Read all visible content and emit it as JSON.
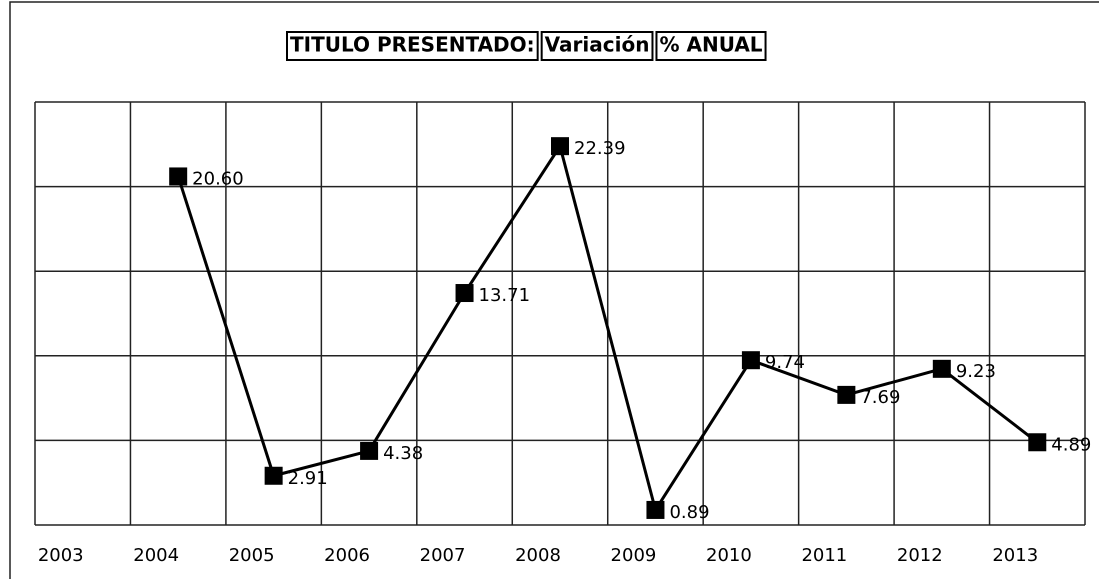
{
  "chart_data": {
    "type": "line",
    "title": [
      "TITULO PRESENTADO:",
      "Variación",
      "% ANUAL"
    ],
    "categories": [
      "2003",
      "2004",
      "2005",
      "2006",
      "2007",
      "2008",
      "2009",
      "2010",
      "2011",
      "2012",
      "2013"
    ],
    "values": [
      null,
      20.6,
      2.91,
      4.38,
      13.71,
      22.39,
      0.89,
      9.74,
      7.69,
      9.23,
      4.89
    ],
    "value_labels": [
      null,
      "20.60",
      "2.91",
      "4.38",
      "13.71",
      "22.39",
      "0.89",
      "9.74",
      "7.69",
      "9.23",
      "4.89"
    ],
    "color": "#000000",
    "ylim": [
      0,
      25
    ],
    "yticks": [
      0,
      5,
      10,
      15,
      20,
      25
    ],
    "grid": true
  }
}
